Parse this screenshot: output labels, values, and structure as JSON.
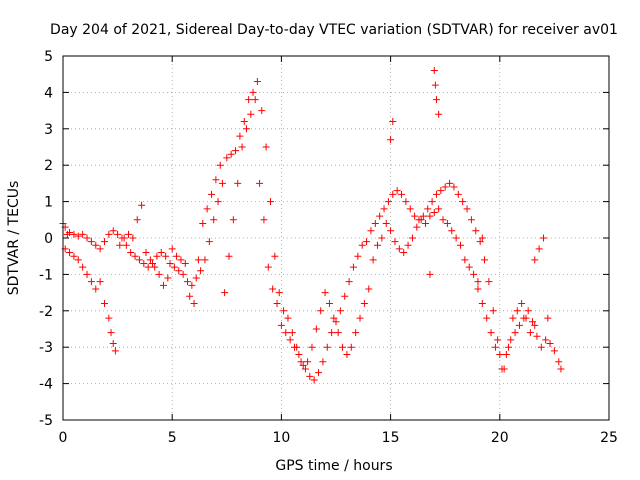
{
  "chart_data": {
    "type": "scatter",
    "title": "Day 204 of 2021, Sidereal Day-to-day VTEC variation (SDTVAR) for receiver av01",
    "xlabel": "GPS time / hours",
    "ylabel": "SDTVAR / TECUs",
    "xlim": [
      0,
      25
    ],
    "ylim": [
      -5,
      5
    ],
    "xticks": [
      "0",
      "5",
      "10",
      "15",
      "20",
      "25"
    ],
    "yticks": [
      "-5",
      "-4",
      "-3",
      "-2",
      "-1",
      "0",
      "1",
      "2",
      "3",
      "4",
      "5"
    ],
    "grid": true,
    "marker": "+",
    "color": "#ff0000",
    "series": [
      {
        "name": "main",
        "x": [
          0,
          0.1,
          0.2,
          0.3,
          0.5,
          0.7,
          0.9,
          1.1,
          1.3,
          1.5,
          1.7,
          1.9,
          2.1,
          2.3,
          2.5,
          2.7,
          2.9,
          3.1,
          3.3,
          3.5,
          3.7,
          3.9,
          4.1,
          4.3,
          4.5,
          4.7,
          4.9,
          5.1,
          5.3,
          5.5,
          5.7,
          5.9,
          6.1,
          6.3,
          6.5,
          6.7,
          6.9,
          7.1,
          7.3,
          7.5,
          7.7,
          7.9,
          8.1,
          8.3,
          8.5,
          8.7,
          8.9,
          9.1,
          9.3,
          9.5,
          9.7,
          9.9,
          10.1,
          10.3,
          10.5,
          10.7,
          10.9,
          11.1,
          11.3,
          11.5,
          11.7,
          11.9,
          12.1,
          12.3,
          12.5,
          12.7,
          12.9,
          13.1,
          13.3,
          13.5,
          13.7,
          13.9,
          14.1,
          14.3,
          14.5,
          14.7,
          14.9,
          15.1,
          15.3,
          15.5,
          15.7,
          15.9,
          16.1,
          16.3,
          16.5,
          16.7,
          16.9,
          17.1,
          17.3,
          17.5,
          17.7,
          17.9,
          18.1,
          18.3,
          18.5,
          18.7,
          18.9,
          19.1,
          19.3,
          19.5,
          19.7,
          19.9,
          20.1,
          20.3,
          20.5,
          20.7,
          20.9,
          21.1,
          21.3,
          21.5,
          21.7,
          21.9,
          22.1,
          22.3,
          22.5,
          22.7,
          22.8
        ],
        "y": [
          0.4,
          0.3,
          0.1,
          0.15,
          0.1,
          0.05,
          0.1,
          0.0,
          -0.1,
          -0.2,
          -0.3,
          -0.1,
          0.1,
          0.2,
          0.1,
          0.0,
          -0.2,
          -0.4,
          -0.5,
          -0.6,
          -0.7,
          -0.8,
          -0.7,
          -0.5,
          -0.4,
          -0.5,
          -0.7,
          -0.8,
          -0.9,
          -1.0,
          -1.2,
          -1.3,
          -1.1,
          -0.9,
          -0.6,
          -0.1,
          0.5,
          1.0,
          1.5,
          2.2,
          2.3,
          2.4,
          2.8,
          3.2,
          3.8,
          4.0,
          4.3,
          3.5,
          2.5,
          1.0,
          -0.5,
          -1.5,
          -2.0,
          -2.2,
          -2.6,
          -3.0,
          -3.4,
          -3.6,
          -3.8,
          -3.9,
          -3.7,
          -3.4,
          -3.0,
          -2.6,
          -2.3,
          -2.0,
          -1.6,
          -1.2,
          -0.8,
          -0.5,
          -0.2,
          -0.1,
          0.2,
          0.4,
          0.6,
          0.8,
          1.0,
          1.2,
          1.3,
          1.2,
          1.0,
          0.8,
          0.6,
          0.5,
          0.6,
          0.8,
          1.0,
          1.2,
          1.3,
          1.4,
          1.5,
          1.4,
          1.2,
          1.0,
          0.8,
          0.5,
          0.2,
          -0.1,
          -0.6,
          -1.2,
          -2.0,
          -2.8,
          -3.6,
          -3.2,
          -2.8,
          -2.6,
          -2.4,
          -2.2,
          -2.0,
          -2.3,
          -2.7,
          -3.0,
          -2.8,
          -2.9,
          -3.1,
          -3.4,
          -3.6
        ]
      },
      {
        "name": "secondary",
        "x": [
          0.1,
          0.3,
          0.5,
          0.7,
          0.9,
          1.1,
          1.3,
          1.5,
          1.7,
          1.9,
          2.1,
          2.2,
          2.3,
          2.4,
          2.6,
          2.8,
          3.0,
          3.2,
          3.4,
          3.6,
          3.8,
          4.0,
          4.2,
          4.4,
          4.6,
          4.8,
          5.0,
          5.2,
          5.4,
          5.6,
          5.8,
          6.0,
          6.2,
          6.4,
          6.6,
          6.8,
          7.0,
          7.2,
          7.4,
          7.6,
          7.8,
          8.0,
          8.2,
          8.4,
          8.6,
          8.8,
          9.0,
          9.2,
          9.4,
          9.6,
          9.8,
          10.0,
          10.2,
          10.4,
          10.6,
          10.8,
          11.0,
          11.2,
          11.4,
          11.6,
          11.8,
          12.0,
          12.2,
          12.4,
          12.6,
          12.8,
          13.0,
          13.2,
          13.4,
          13.6,
          13.8,
          14.0,
          14.2,
          14.4,
          14.6,
          14.8,
          15.0,
          15.2,
          15.4,
          15.6,
          15.8,
          16.0,
          16.2,
          16.4,
          16.6,
          16.8,
          17.0,
          17.2,
          17.4,
          17.6,
          17.8,
          18.0,
          18.2,
          18.4,
          18.6,
          18.8,
          19.0,
          19.2,
          19.4,
          19.6,
          19.8,
          20.0,
          20.2,
          20.4,
          20.6,
          20.8,
          21.0,
          21.2,
          21.4,
          21.6
        ],
        "y": [
          -0.3,
          -0.4,
          -0.5,
          -0.6,
          -0.8,
          -1.0,
          -1.2,
          -1.4,
          -1.2,
          -1.8,
          -2.2,
          -2.6,
          -2.9,
          -3.1,
          -0.2,
          0.0,
          0.1,
          0.0,
          0.5,
          0.9,
          -0.4,
          -0.6,
          -0.8,
          -1.0,
          -1.3,
          -1.1,
          -0.3,
          -0.5,
          -0.6,
          -0.7,
          -1.6,
          -1.8,
          -0.6,
          0.4,
          0.8,
          1.2,
          1.6,
          2.0,
          -1.5,
          -0.5,
          0.5,
          1.5,
          2.5,
          3.0,
          3.4,
          3.8,
          1.5,
          0.5,
          -0.8,
          -1.4,
          -1.8,
          -2.4,
          -2.6,
          -2.8,
          -3.0,
          -3.2,
          -3.5,
          -3.4,
          -3.0,
          -2.5,
          -2.0,
          -1.5,
          -1.8,
          -2.2,
          -2.6,
          -3.0,
          -3.2,
          -3.0,
          -2.6,
          -2.2,
          -1.8,
          -1.4,
          -0.6,
          -0.2,
          0.0,
          0.4,
          0.2,
          -0.1,
          -0.3,
          -0.4,
          -0.2,
          0.0,
          0.3,
          0.5,
          0.4,
          0.6,
          0.7,
          0.8,
          0.5,
          0.4,
          0.2,
          0.0,
          -0.2,
          -0.6,
          -0.8,
          -1.0,
          -1.4,
          -1.8,
          -2.2,
          -2.6,
          -3.0,
          -3.2,
          -3.6,
          -3.0,
          -2.2,
          -2.0,
          -1.8,
          -2.2,
          -2.6,
          -2.4
        ]
      },
      {
        "name": "outliers",
        "x": [
          15.0,
          15.1,
          17.0,
          17.05,
          17.1,
          17.2,
          16.8,
          21.6,
          21.8,
          22.0,
          22.2,
          19.0,
          19.2
        ],
        "y": [
          2.7,
          3.2,
          4.6,
          4.2,
          3.8,
          3.4,
          -1.0,
          -0.6,
          -0.3,
          0.0,
          -2.2,
          -1.2,
          0.0
        ]
      }
    ]
  }
}
